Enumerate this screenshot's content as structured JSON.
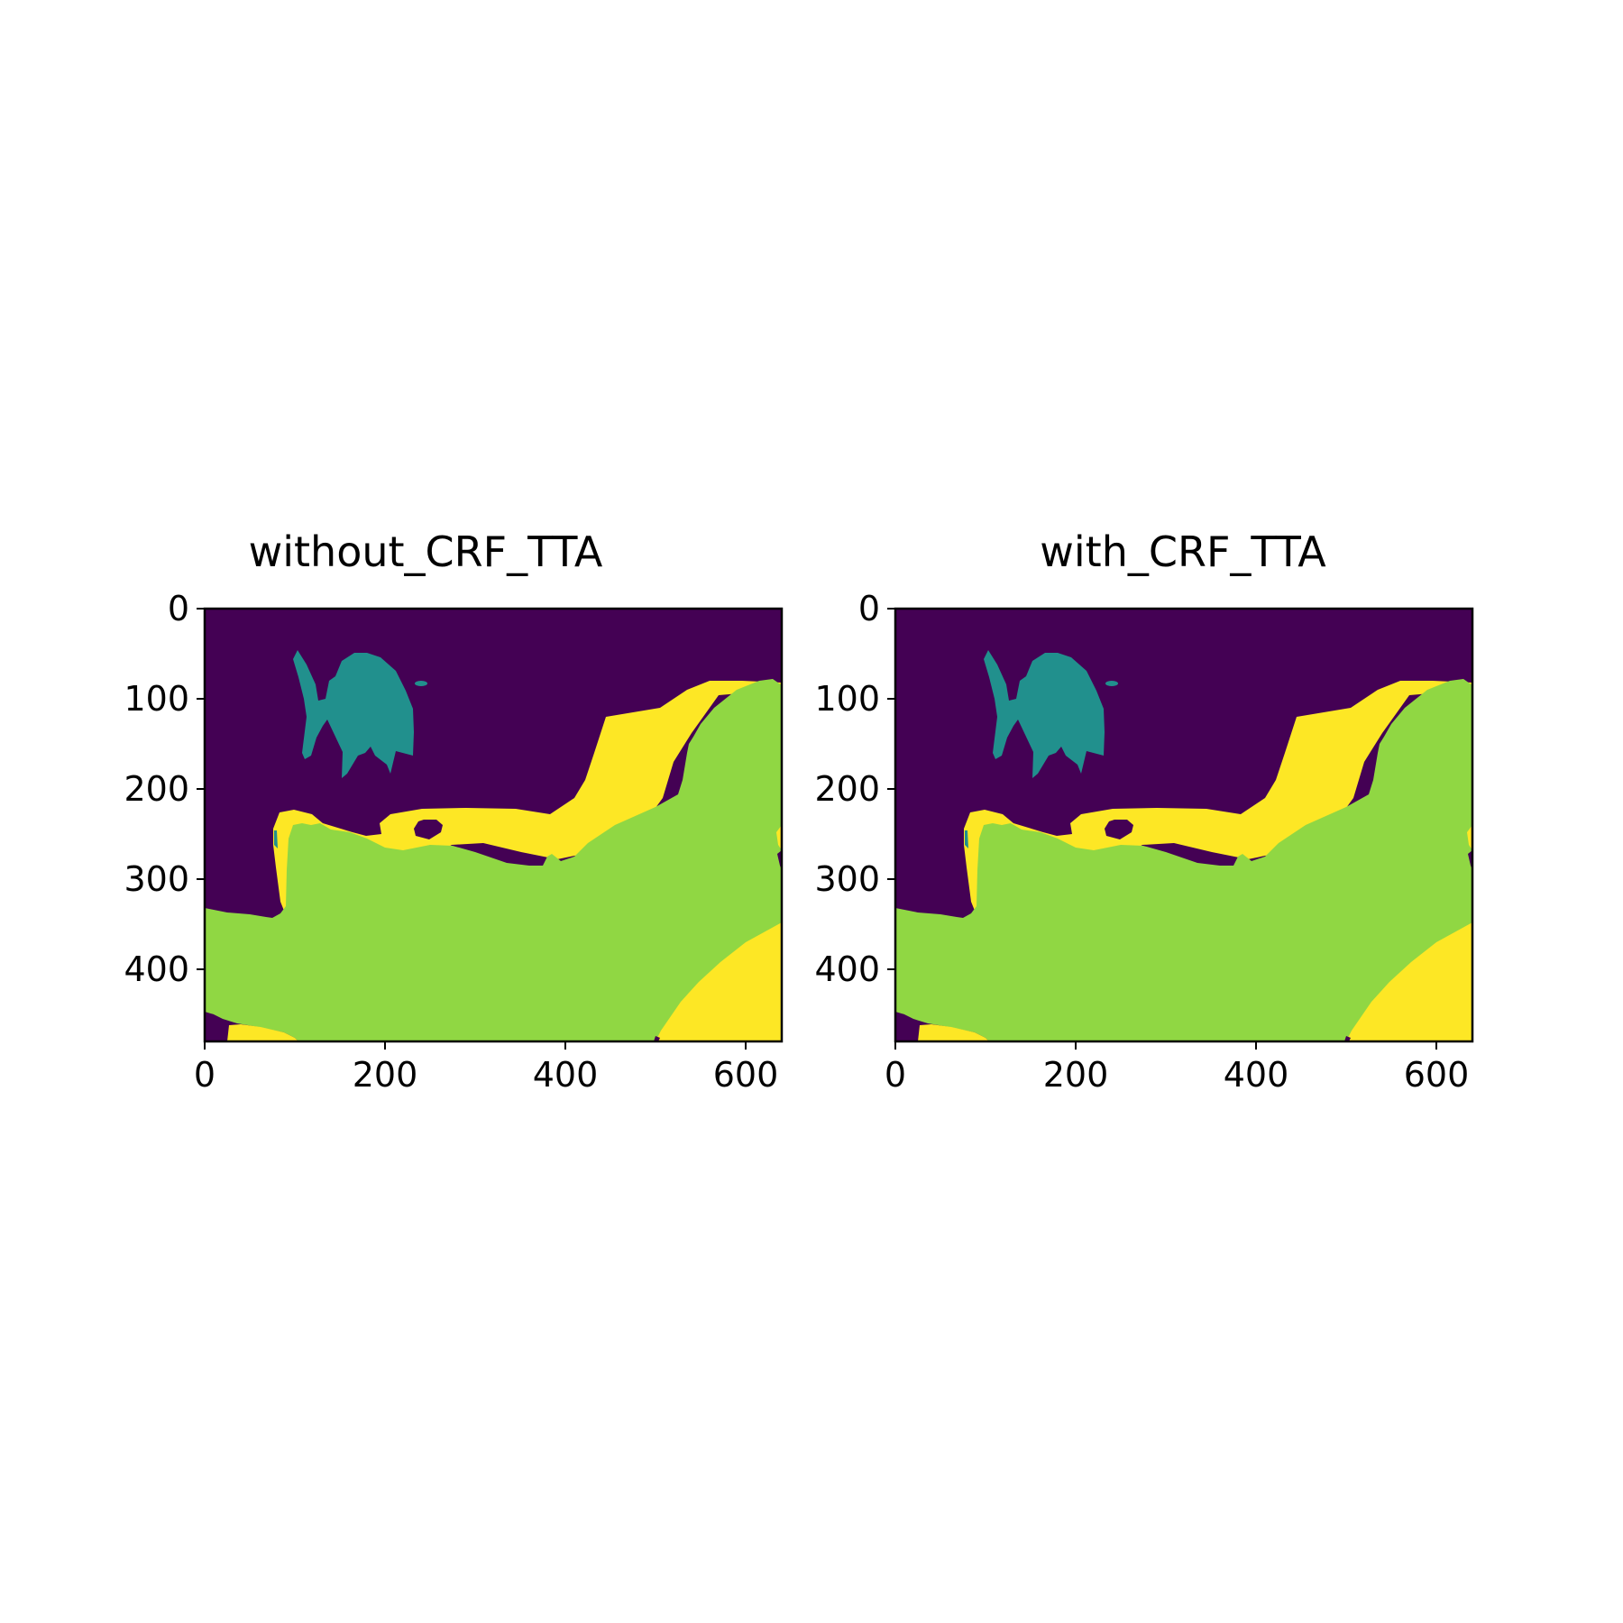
{
  "chart_data": [
    {
      "type": "heatmap",
      "subtype": "segmentation-mask",
      "title": "without_CRF_TTA",
      "xlim": [
        0,
        640
      ],
      "ylim": [
        480,
        0
      ],
      "xticks": [
        0,
        200,
        400,
        600
      ],
      "yticks": [
        0,
        100,
        200,
        300,
        400
      ],
      "grid": false,
      "colormap": "viridis",
      "class_colors": [
        "#440154",
        "#21908d",
        "#90d743",
        "#fde725"
      ],
      "image_size": [
        640,
        480
      ],
      "y_axis_inverted": true
    },
    {
      "type": "heatmap",
      "subtype": "segmentation-mask",
      "title": "with_CRF_TTA",
      "xlim": [
        0,
        640
      ],
      "ylim": [
        480,
        0
      ],
      "xticks": [
        0,
        200,
        400,
        600
      ],
      "yticks": [
        0,
        100,
        200,
        300,
        400
      ],
      "grid": false,
      "colormap": "viridis",
      "class_colors": [
        "#440154",
        "#21908d",
        "#90d743",
        "#fde725"
      ],
      "image_size": [
        640,
        480
      ],
      "y_axis_inverted": true
    }
  ]
}
